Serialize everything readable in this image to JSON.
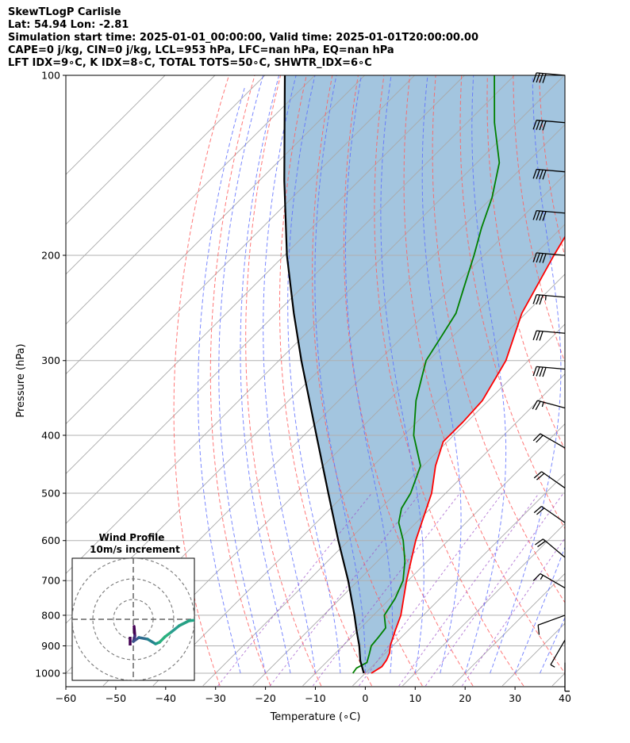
{
  "header": {
    "line1": "SkewTLogP Carlisle",
    "line2": "Lat: 54.94   Lon: -2.81",
    "line3": "Simulation start time: 2025-01-01_00:00:00, Valid time: 2025-01-01T20:00:00.00",
    "line4": "CAPE=0 j/kg, CIN=0 j/kg, LCL=953 hPa, LFC=nan hPa, EQ=nan hPa",
    "line5": "LFT IDX=9∘C, K IDX=8∘C, TOTAL TOTS=50∘C, SHWTR_IDX=6∘C"
  },
  "inset": {
    "title": "Wind Profile",
    "subtitle": "10m/s increment"
  },
  "colors": {
    "temperature": "#ff0000",
    "dewpoint": "#008000",
    "parcel": "#000000",
    "cape_fill": "#7fafd3",
    "isotherm": "#a9a9a9",
    "dry_adiabat": "#ff6060",
    "moist_adiabat": "#5a6cff",
    "mixing_ratio": "#9b4fc7"
  },
  "chart_data": {
    "type": "line",
    "title": "",
    "xlabel": "Temperature (∘C)",
    "ylabel": "Pressure (hPa)",
    "xlim": [
      -60,
      40
    ],
    "ylim": [
      1050,
      100
    ],
    "y_scale": "log",
    "skew": true,
    "grid": true,
    "x_ticks": [
      -60,
      -50,
      -40,
      -30,
      -20,
      -10,
      0,
      10,
      20,
      30,
      40
    ],
    "x_tick_labels": [
      "−60",
      "−50",
      "−40",
      "−30",
      "−20",
      "−10",
      "0",
      "10",
      "20",
      "30",
      "40"
    ],
    "y_ticks": [
      1000,
      900,
      800,
      700,
      600,
      500,
      400,
      300,
      200,
      100
    ],
    "series": [
      {
        "role": "temperature",
        "pressure": [
          1000,
          975,
          950,
          925,
          900,
          850,
          800,
          700,
          600,
          500,
          450,
          410,
          380,
          350,
          300,
          250,
          200,
          150,
          100
        ],
        "values": [
          1.2,
          2.0,
          1.6,
          0.8,
          -0.5,
          -2.5,
          -4.5,
          -10.3,
          -16.5,
          -22.8,
          -27.5,
          -30.8,
          -30.8,
          -31.2,
          -34.5,
          -40.8,
          -46.0,
          -52.0,
          -58.0
        ]
      },
      {
        "role": "dewpoint",
        "pressure": [
          1000,
          980,
          960,
          930,
          900,
          870,
          840,
          800,
          750,
          700,
          650,
          600,
          560,
          530,
          500,
          450,
          400,
          350,
          320,
          300,
          270,
          250,
          230,
          200,
          180,
          160,
          140,
          120,
          100
        ],
        "values": [
          -2.5,
          -2.8,
          -1.8,
          -3.0,
          -4.3,
          -4.6,
          -5.0,
          -7.8,
          -9.0,
          -11.0,
          -14.5,
          -19.0,
          -23.5,
          -25.8,
          -27.0,
          -30.5,
          -38.0,
          -44.5,
          -48.0,
          -50.5,
          -52.5,
          -54.0,
          -57.0,
          -62.0,
          -66.0,
          -70.0,
          -75.5,
          -84.5,
          -94.0
        ]
      },
      {
        "role": "parcel",
        "pressure": [
          1000,
          953,
          900,
          850,
          800,
          700,
          600,
          500,
          400,
          300,
          250,
          200,
          150,
          100
        ],
        "values": [
          -0.3,
          -3.5,
          -6.7,
          -10.2,
          -13.8,
          -22.0,
          -32.0,
          -43.5,
          -57.5,
          -75.5,
          -86.5,
          -99.5,
          -115.0,
          -136.0
        ]
      }
    ],
    "wind_barbs": {
      "pressure": [
        100,
        120,
        145,
        170,
        200,
        235,
        270,
        310,
        360,
        420,
        490,
        560,
        640,
        720,
        800,
        880,
        960
      ],
      "speed_ms": [
        40,
        40,
        40,
        40,
        40,
        35,
        30,
        40,
        25,
        20,
        20,
        20,
        20,
        15,
        10,
        5,
        5
      ],
      "direction_deg": [
        275,
        275,
        275,
        275,
        275,
        275,
        275,
        275,
        285,
        300,
        305,
        305,
        310,
        300,
        250,
        210,
        180
      ]
    }
  }
}
